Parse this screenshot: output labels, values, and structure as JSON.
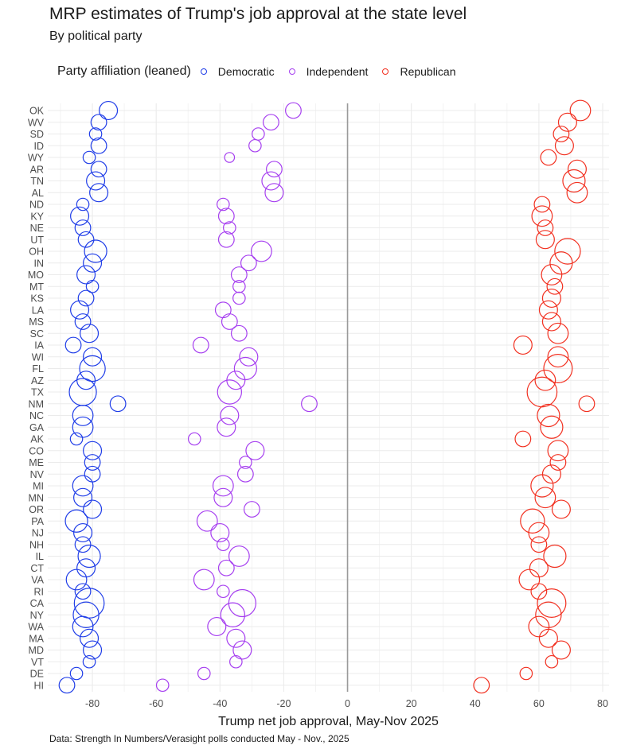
{
  "chart_data": {
    "type": "scatter",
    "title": "MRP estimates of Trump's job approval at the state level",
    "subtitle": "By political party",
    "xlabel": "Trump net job approval, May-Nov 2025",
    "ylabel": "",
    "xlim": [
      -94,
      82
    ],
    "x_ticks": [
      -80,
      -60,
      -40,
      -20,
      0,
      20,
      40,
      60,
      80
    ],
    "x_tick_labels": [
      "-80",
      "-60",
      "-40",
      "-20",
      "0",
      "20",
      "40",
      "60",
      "80"
    ],
    "reference_line_x": 0,
    "grid": true,
    "legend": {
      "title": "Party affiliation (leaned)",
      "position": "top-left",
      "entries": [
        "Democratic",
        "Independent",
        "Republican"
      ]
    },
    "colors": {
      "Democratic": "#1f3de8",
      "Independent": "#a63ff0",
      "Republican": "#f23020"
    },
    "caption": "Data: Strength In Numbers/Verasight polls conducted May - Nov., 2025",
    "states": [
      "OK",
      "WV",
      "SD",
      "ID",
      "WY",
      "AR",
      "TN",
      "AL",
      "ND",
      "KY",
      "NE",
      "UT",
      "OH",
      "IN",
      "MO",
      "MT",
      "KS",
      "LA",
      "MS",
      "SC",
      "IA",
      "WI",
      "FL",
      "AZ",
      "TX",
      "NM",
      "NC",
      "GA",
      "AK",
      "CO",
      "ME",
      "NV",
      "MI",
      "MN",
      "OR",
      "PA",
      "NJ",
      "NH",
      "IL",
      "CT",
      "VA",
      "RI",
      "CA",
      "NY",
      "WA",
      "MA",
      "MD",
      "VT",
      "DE",
      "HI"
    ],
    "size_note": "marker size reflects relative sample size (unitless relative value)",
    "series": [
      {
        "name": "Democratic",
        "values": [
          -75,
          -78,
          -79,
          -78,
          -81,
          -78,
          -79,
          -78,
          -83,
          -84,
          -83,
          -82,
          -79,
          -80,
          -82,
          -80,
          -82,
          -84,
          -83,
          -81,
          -86,
          -80,
          -80,
          -82,
          -83,
          -72,
          -83,
          -83,
          -85,
          -80,
          -80,
          -80,
          -83,
          -83,
          -80,
          -85,
          -83,
          -83,
          -81,
          -82,
          -85,
          -83,
          -81,
          -82,
          -83,
          -81,
          -80,
          -81,
          -85,
          -88
        ],
        "sizes": [
          3,
          2,
          1,
          2,
          1,
          2,
          3,
          3,
          1,
          3,
          2,
          2,
          5,
          3,
          3,
          1,
          2,
          3,
          2,
          3,
          2,
          3,
          7,
          3,
          8,
          2,
          4,
          4,
          1,
          3,
          2,
          2,
          4,
          3,
          3,
          5,
          3,
          2,
          5,
          3,
          4,
          2,
          10,
          7,
          4,
          3,
          3,
          1,
          1,
          2
        ]
      },
      {
        "name": "Independent",
        "values": [
          -17,
          -24,
          -28,
          -29,
          -37,
          -23,
          -24,
          -23,
          -39,
          -38,
          -37,
          -38,
          -27,
          -31,
          -34,
          -34,
          -34,
          -39,
          -37,
          -34,
          -46,
          -31,
          -32,
          -35,
          -37,
          -12,
          -37,
          -38,
          -48,
          -29,
          -32,
          -32,
          -39,
          -39,
          -30,
          -44,
          -40,
          -39,
          -34,
          -38,
          -45,
          -39,
          -33,
          -36,
          -41,
          -35,
          -33,
          -35,
          -45,
          -58
        ],
        "sizes": [
          2,
          2,
          1,
          1,
          0.5,
          2,
          3,
          3,
          1,
          2,
          1,
          2,
          4,
          2,
          2,
          1,
          1,
          2,
          2,
          2,
          2,
          3,
          5,
          3,
          6,
          2,
          3,
          3,
          1,
          3,
          1,
          2,
          4,
          3,
          2,
          4,
          3,
          1,
          4,
          2,
          4,
          1,
          8,
          6,
          3,
          3,
          3,
          1,
          1,
          1
        ]
      },
      {
        "name": "Republican",
        "values": [
          73,
          69,
          67,
          68,
          63,
          72,
          71,
          72,
          61,
          61,
          62,
          62,
          69,
          67,
          64,
          65,
          64,
          63,
          64,
          66,
          55,
          66,
          66,
          62,
          61,
          75,
          63,
          64,
          55,
          66,
          66,
          64,
          61,
          62,
          67,
          58,
          60,
          60,
          65,
          60,
          57,
          60,
          64,
          63,
          60,
          63,
          67,
          64,
          56,
          42
        ],
        "sizes": [
          4,
          3,
          2,
          3,
          2,
          3,
          5,
          4,
          2,
          4,
          2,
          3,
          7,
          5,
          4,
          2,
          3,
          3,
          3,
          4,
          3,
          4,
          9,
          4,
          10,
          2,
          5,
          5,
          2,
          4,
          2,
          3,
          5,
          4,
          3,
          6,
          4,
          2,
          5,
          3,
          4,
          2,
          9,
          7,
          4,
          3,
          3,
          1,
          1,
          2
        ]
      }
    ]
  }
}
